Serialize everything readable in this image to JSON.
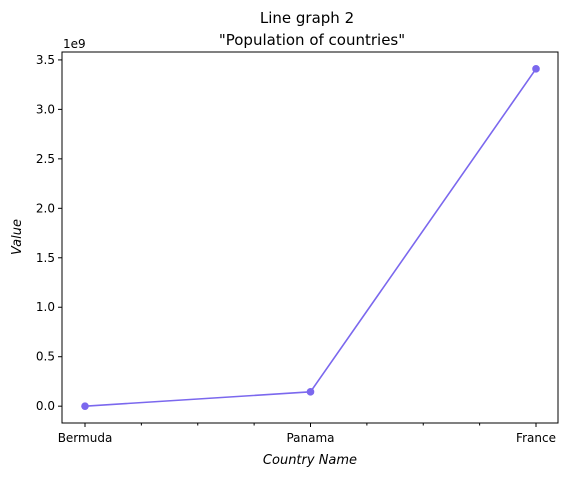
{
  "chart_data": {
    "type": "line",
    "title_line1": "Line graph 2",
    "title_line2": "\"Population of countries\"",
    "xlabel": "Country Name",
    "ylabel": "Value",
    "y_offset_label": "1e9",
    "categories": [
      "Bermuda",
      "Panama",
      "France"
    ],
    "series": [
      {
        "values": [
          0,
          145000000,
          3410000000
        ],
        "color": "#7b68ee"
      }
    ],
    "y_ticks": [
      0,
      500000000,
      1000000000,
      1500000000,
      2000000000,
      2500000000,
      3000000000,
      3500000000
    ],
    "y_tick_labels": [
      "0.0",
      "0.5",
      "1.0",
      "1.5",
      "2.0",
      "2.5",
      "3.0",
      "3.5"
    ],
    "ylim": [
      -170000000,
      3580000000
    ],
    "grid": false,
    "legend": "none"
  }
}
